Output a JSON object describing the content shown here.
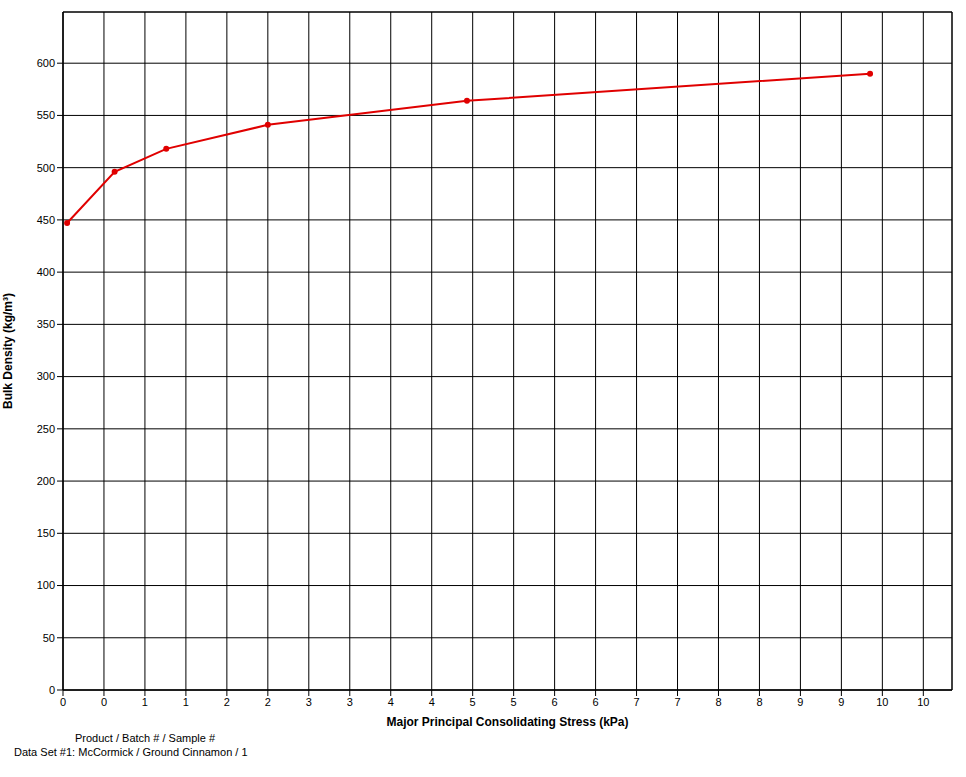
{
  "chart_data": {
    "type": "line",
    "x_label": "Major Principal Consolidating Stress (kPa)",
    "y_label": "Bulk Density (kg/m³)",
    "x": [
      0.05,
      0.63,
      1.26,
      2.5,
      4.93,
      9.85
    ],
    "series": [
      {
        "name": "McCormick / Ground Cinnamon / 1",
        "color": "#e00000",
        "marker": "circle",
        "values": [
          447,
          496,
          518,
          541,
          564,
          590
        ]
      }
    ],
    "xlim": [
      0,
      10.85
    ],
    "xticks": [
      0,
      {
        "value": 0.5,
        "label": "0"
      },
      1,
      {
        "value": 1.5,
        "label": "1"
      },
      2,
      {
        "value": 2.5,
        "label": "2"
      },
      3,
      {
        "value": 3.5,
        "label": "3"
      },
      4,
      {
        "value": 4.5,
        "label": "4"
      },
      5,
      {
        "value": 5.5,
        "label": "5"
      },
      6,
      {
        "value": 6.5,
        "label": "6"
      },
      7,
      {
        "value": 7.5,
        "label": "7"
      },
      8,
      {
        "value": 8.5,
        "label": "8"
      },
      9,
      {
        "value": 9.5,
        "label": "9"
      },
      10,
      {
        "value": 10.5,
        "label": "10"
      }
    ],
    "ylim": [
      0,
      649
    ],
    "yticks": [
      0,
      50,
      100,
      150,
      200,
      250,
      300,
      350,
      400,
      450,
      500,
      550,
      600
    ],
    "grid": true,
    "legend_title": "Product / Batch # / Sample #",
    "legend_prefix": "Data Set #1: "
  }
}
